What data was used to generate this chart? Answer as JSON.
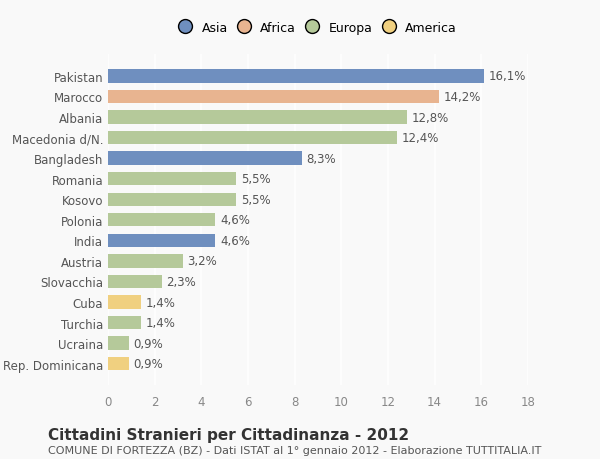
{
  "categories": [
    "Rep. Dominicana",
    "Ucraina",
    "Turchia",
    "Cuba",
    "Slovacchia",
    "Austria",
    "India",
    "Polonia",
    "Kosovo",
    "Romania",
    "Bangladesh",
    "Macedonia d/N.",
    "Albania",
    "Marocco",
    "Pakistan"
  ],
  "values": [
    0.9,
    0.9,
    1.4,
    1.4,
    2.3,
    3.2,
    4.6,
    4.6,
    5.5,
    5.5,
    8.3,
    12.4,
    12.8,
    14.2,
    16.1
  ],
  "labels": [
    "0,9%",
    "0,9%",
    "1,4%",
    "1,4%",
    "2,3%",
    "3,2%",
    "4,6%",
    "4,6%",
    "5,5%",
    "5,5%",
    "8,3%",
    "12,4%",
    "12,8%",
    "14,2%",
    "16,1%"
  ],
  "continents": [
    "America",
    "Europa",
    "Europa",
    "America",
    "Europa",
    "Europa",
    "Asia",
    "Europa",
    "Europa",
    "Europa",
    "Asia",
    "Europa",
    "Europa",
    "Africa",
    "Asia"
  ],
  "continent_colors": {
    "Asia": "#6f8fbf",
    "Africa": "#e8b490",
    "Europa": "#b5c99a",
    "America": "#f0d080"
  },
  "legend_order": [
    "Asia",
    "Africa",
    "Europa",
    "America"
  ],
  "legend_colors": [
    "#6f8fbf",
    "#e8b490",
    "#b5c99a",
    "#f0d080"
  ],
  "xlim": [
    0,
    18
  ],
  "xticks": [
    0,
    2,
    4,
    6,
    8,
    10,
    12,
    14,
    16,
    18
  ],
  "title": "Cittadini Stranieri per Cittadinanza - 2012",
  "subtitle": "COMUNE DI FORTEZZA (BZ) - Dati ISTAT al 1° gennaio 2012 - Elaborazione TUTTITALIA.IT",
  "bg_color": "#f9f9f9",
  "bar_height": 0.65,
  "label_fontsize": 8.5,
  "tick_fontsize": 8.5,
  "title_fontsize": 11,
  "subtitle_fontsize": 8
}
